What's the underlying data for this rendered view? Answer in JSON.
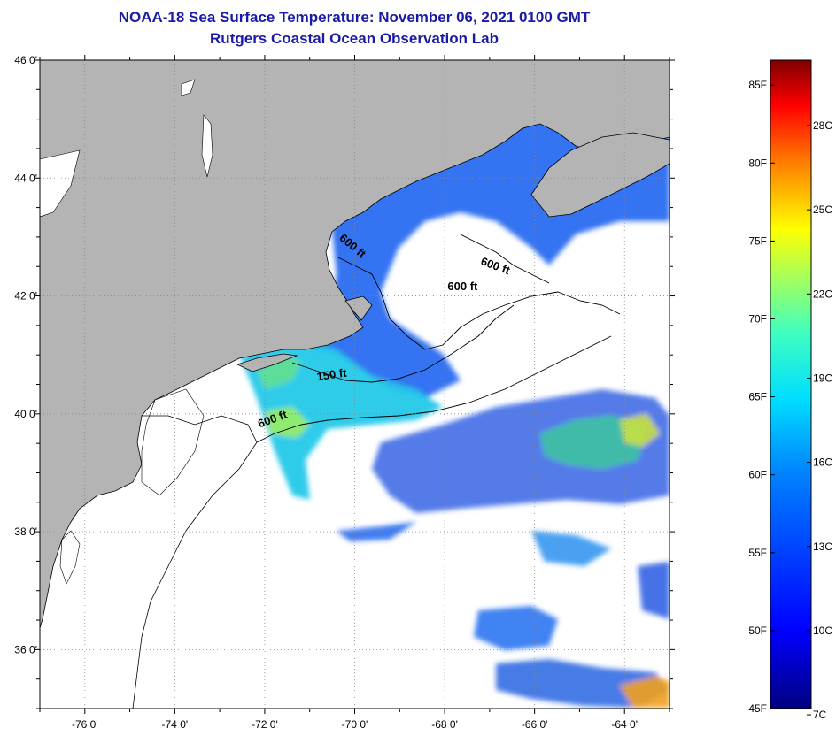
{
  "header": {
    "title": "NOAA-18 Sea Surface Temperature:  November 06, 2021 0100 GMT",
    "subtitle": "Rutgers Coastal Ocean Observation Lab"
  },
  "map": {
    "lon_range": [
      -77,
      -63
    ],
    "lat_range": [
      35,
      46
    ],
    "lon_ticks": [
      {
        "value": -76,
        "label": "-76 0'"
      },
      {
        "value": -74,
        "label": "-74 0'"
      },
      {
        "value": -72,
        "label": "-72 0'"
      },
      {
        "value": -70,
        "label": "-70 0'"
      },
      {
        "value": -68,
        "label": "-68 0'"
      },
      {
        "value": -66,
        "label": "-66 0'"
      },
      {
        "value": -64,
        "label": "-64 0'"
      }
    ],
    "lat_ticks": [
      {
        "value": 46,
        "label": "46 0'"
      },
      {
        "value": 44,
        "label": "44 0'"
      },
      {
        "value": 42,
        "label": "42 0'"
      },
      {
        "value": 40,
        "label": "40 0'"
      },
      {
        "value": 38,
        "label": "38 0'"
      },
      {
        "value": 36,
        "label": "36 0'"
      }
    ],
    "contour_labels": [
      {
        "text": "600 ft",
        "lon": -70.1,
        "lat": 42.8,
        "rotate": 40
      },
      {
        "text": "600 ft",
        "lon": -66.9,
        "lat": 42.45,
        "rotate": 20
      },
      {
        "text": "600 ft",
        "lon": -67.6,
        "lat": 42.1,
        "rotate": 0
      },
      {
        "text": "150 ft",
        "lon": -70.5,
        "lat": 40.6,
        "rotate": -8
      },
      {
        "text": "600 ft",
        "lon": -71.8,
        "lat": 39.85,
        "rotate": -20
      }
    ],
    "colors": {
      "land": "#b4b4b4",
      "water_nodata": "#ffffff",
      "gridline": "#888888"
    }
  },
  "colorbar": {
    "fahrenheit": [
      {
        "value": 85,
        "label": "85F"
      },
      {
        "value": 80,
        "label": "80F"
      },
      {
        "value": 75,
        "label": "75F"
      },
      {
        "value": 70,
        "label": "70F"
      },
      {
        "value": 65,
        "label": "65F"
      },
      {
        "value": 60,
        "label": "60F"
      },
      {
        "value": 55,
        "label": "55F"
      },
      {
        "value": 50,
        "label": "50F"
      },
      {
        "value": 45,
        "label": "45F"
      }
    ],
    "celsius": [
      {
        "value": 28,
        "label": "28C"
      },
      {
        "value": 25,
        "label": "25C"
      },
      {
        "value": 22,
        "label": "22C"
      },
      {
        "value": 19,
        "label": "19C"
      },
      {
        "value": 16,
        "label": "16C"
      },
      {
        "value": 13,
        "label": "13C"
      },
      {
        "value": 10,
        "label": "10C"
      },
      {
        "value": 7,
        "label": "7C"
      }
    ],
    "f_range": [
      45,
      86.6
    ]
  }
}
